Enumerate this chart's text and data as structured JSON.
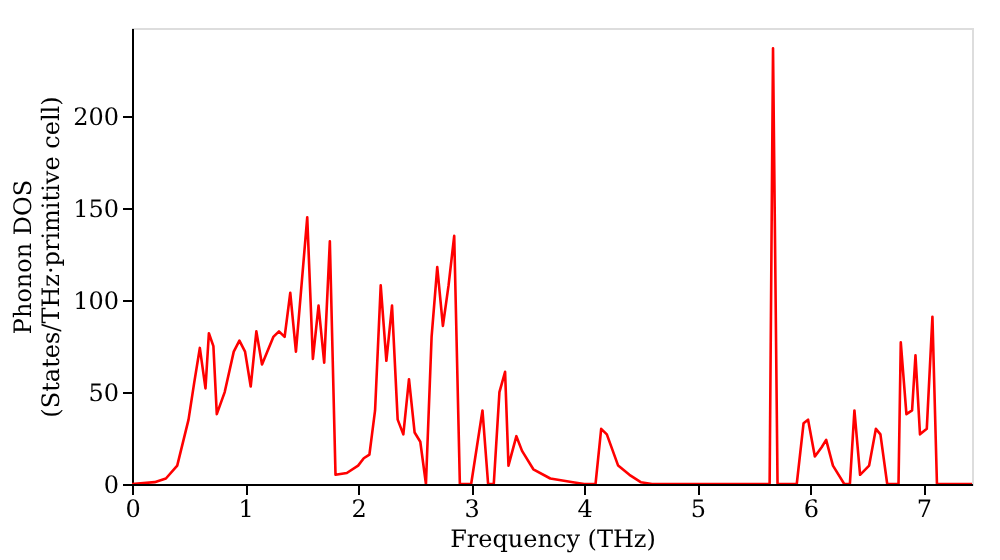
{
  "chart_data": {
    "type": "line",
    "xlabel": "Frequency (THz)",
    "ylabel": "Phonon DOS\n(States/THz·primitive cell)",
    "xlim": [
      0,
      7.43
    ],
    "ylim": [
      0,
      248
    ],
    "xticks": [
      0,
      1,
      2,
      3,
      4,
      5,
      6,
      7
    ],
    "yticks": [
      0,
      50,
      100,
      150,
      200
    ],
    "grid": false,
    "line_style": "solid",
    "marker": "none",
    "series": [
      {
        "color": "#ff0000",
        "x": [
          0,
          0.2,
          0.3,
          0.4,
          0.5,
          0.55,
          0.6,
          0.65,
          0.68,
          0.72,
          0.75,
          0.82,
          0.9,
          0.95,
          1.0,
          1.05,
          1.1,
          1.15,
          1.25,
          1.3,
          1.35,
          1.4,
          1.45,
          1.55,
          1.6,
          1.65,
          1.7,
          1.75,
          1.8,
          1.9,
          2.0,
          2.05,
          2.1,
          2.15,
          2.2,
          2.25,
          2.3,
          2.35,
          2.4,
          2.45,
          2.5,
          2.55,
          2.6,
          2.65,
          2.7,
          2.75,
          2.8,
          2.85,
          2.9,
          3.0,
          3.05,
          3.1,
          3.15,
          3.2,
          3.25,
          3.3,
          3.33,
          3.4,
          3.45,
          3.55,
          3.7,
          3.9,
          4.0,
          4.1,
          4.15,
          4.2,
          4.3,
          4.4,
          4.5,
          4.6,
          5.6,
          5.64,
          5.67,
          5.71,
          5.88,
          5.94,
          5.98,
          6.04,
          6.1,
          6.14,
          6.2,
          6.3,
          6.35,
          6.39,
          6.44,
          6.52,
          6.58,
          6.62,
          6.68,
          6.78,
          6.8,
          6.85,
          6.9,
          6.93,
          6.97,
          7.03,
          7.08,
          7.12,
          7.43
        ],
        "values": [
          0,
          1,
          3,
          10,
          35,
          55,
          74,
          52,
          82,
          75,
          38,
          50,
          72,
          78,
          72,
          53,
          83,
          65,
          80,
          83,
          80,
          104,
          72,
          145,
          68,
          97,
          66,
          132,
          5,
          6,
          10,
          14,
          16,
          40,
          108,
          67,
          97,
          35,
          27,
          57,
          28,
          23,
          0,
          80,
          118,
          86,
          108,
          135,
          0,
          0,
          20,
          40,
          0,
          0,
          50,
          61,
          10,
          26,
          18,
          8,
          3,
          1,
          0,
          0,
          30,
          27,
          10,
          5,
          1,
          0,
          0,
          0,
          237,
          0,
          0,
          33,
          35,
          15,
          20,
          24,
          10,
          0,
          0,
          40,
          5,
          10,
          30,
          27,
          0,
          0,
          77,
          38,
          40,
          70,
          27,
          30,
          91,
          0,
          0
        ]
      }
    ]
  }
}
